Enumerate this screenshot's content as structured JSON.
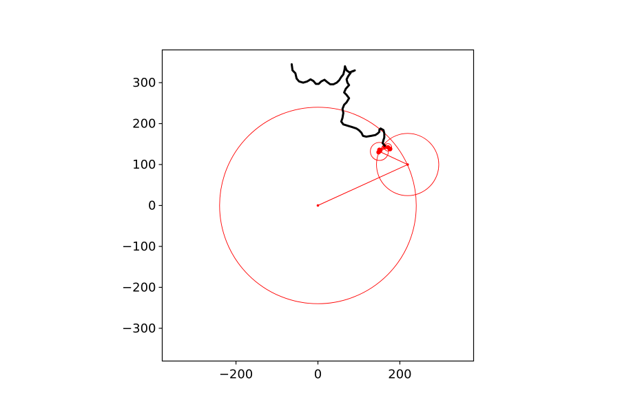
{
  "chart_data": {
    "type": "line",
    "title": "",
    "xlabel": "",
    "ylabel": "",
    "xlim": [
      -380,
      380
    ],
    "ylim": [
      -380,
      380
    ],
    "grid": false,
    "x_ticks": [
      -200,
      0,
      200
    ],
    "y_ticks": [
      -300,
      -200,
      -100,
      0,
      100,
      200,
      300
    ],
    "x_tick_labels": [
      "−200",
      "0",
      "200"
    ],
    "y_tick_labels": [
      "−300",
      "−200",
      "−100",
      "0",
      "100",
      "200",
      "300"
    ],
    "epicycle_color": "#ff0000",
    "trace_color": "#000000",
    "circles": [
      {
        "cx": 0,
        "cy": 0,
        "r": 240
      },
      {
        "cx": 219,
        "cy": 100,
        "r": 76
      },
      {
        "cx": 150,
        "cy": 132,
        "r": 22
      },
      {
        "cx": 171,
        "cy": 142,
        "r": 9
      },
      {
        "cx": 176,
        "cy": 138,
        "r": 5
      },
      {
        "cx": 148,
        "cy": 130,
        "r": 4
      },
      {
        "cx": 150,
        "cy": 136,
        "r": 3
      }
    ],
    "arm": [
      [
        0,
        0
      ],
      [
        219,
        100
      ],
      [
        150,
        132
      ],
      [
        171,
        142
      ],
      [
        176,
        138
      ],
      [
        163,
        143
      ],
      [
        148,
        130
      ],
      [
        152,
        134
      ],
      [
        150,
        136
      ],
      [
        163,
        143
      ]
    ],
    "trace": [
      [
        -64,
        345
      ],
      [
        -62,
        330
      ],
      [
        -55,
        323
      ],
      [
        -52,
        310
      ],
      [
        -46,
        303
      ],
      [
        -36,
        300
      ],
      [
        -26,
        303
      ],
      [
        -18,
        308
      ],
      [
        -11,
        304
      ],
      [
        -5,
        297
      ],
      [
        2,
        297
      ],
      [
        8,
        303
      ],
      [
        16,
        307
      ],
      [
        22,
        302
      ],
      [
        30,
        296
      ],
      [
        38,
        296
      ],
      [
        46,
        300
      ],
      [
        52,
        306
      ],
      [
        57,
        314
      ],
      [
        62,
        320
      ],
      [
        65,
        332
      ],
      [
        66,
        340
      ],
      [
        70,
        330
      ],
      [
        77,
        325
      ],
      [
        86,
        328
      ],
      [
        90,
        330
      ],
      [
        82,
        327
      ],
      [
        74,
        316
      ],
      [
        70,
        308
      ],
      [
        72,
        300
      ],
      [
        76,
        294
      ],
      [
        68,
        285
      ],
      [
        64,
        276
      ],
      [
        70,
        270
      ],
      [
        76,
        262
      ],
      [
        70,
        252
      ],
      [
        64,
        246
      ],
      [
        60,
        236
      ],
      [
        62,
        226
      ],
      [
        60,
        214
      ],
      [
        57,
        205
      ],
      [
        62,
        198
      ],
      [
        72,
        195
      ],
      [
        82,
        192
      ],
      [
        94,
        188
      ],
      [
        100,
        184
      ],
      [
        106,
        178
      ],
      [
        110,
        170
      ],
      [
        118,
        168
      ],
      [
        130,
        170
      ],
      [
        140,
        172
      ],
      [
        146,
        176
      ],
      [
        150,
        180
      ],
      [
        150,
        185
      ],
      [
        153,
        188
      ],
      [
        160,
        184
      ],
      [
        162,
        176
      ],
      [
        162,
        166
      ],
      [
        160,
        160
      ],
      [
        158,
        152
      ],
      [
        163,
        146
      ]
    ]
  }
}
